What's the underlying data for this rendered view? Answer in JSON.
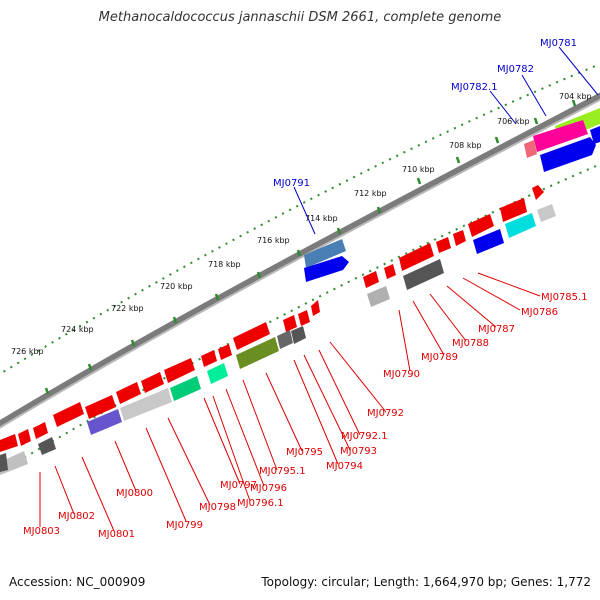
{
  "title": "Methanocaldococcus jannaschii DSM 2661, complete genome",
  "footer": {
    "accession": "Accession: NC_000909",
    "topology": "Topology: circular; Length: 1,664,970 bp; Genes: 1,772"
  },
  "colors": {
    "backbone": "#808080",
    "tick_dots": "#2e8b2e",
    "forward_label": "#0000cc",
    "reverse_label": "#dd0000"
  },
  "scale_ticks": [
    "704 kbp",
    "706 kbp",
    "708 kbp",
    "710 kbp",
    "712 kbp",
    "714 kbp",
    "716 kbp",
    "718 kbp",
    "720 kbp",
    "722 kbp",
    "724 kbp",
    "726 kbp"
  ],
  "forward_gene_labels": [
    "MJ0781",
    "MJ0782",
    "MJ0782.1",
    "MJ0791"
  ],
  "reverse_gene_labels": [
    "MJ0785.1",
    "MJ0786",
    "MJ0787",
    "MJ0788",
    "MJ0789",
    "MJ0790",
    "MJ0792",
    "MJ0792.1",
    "MJ0793",
    "MJ0794",
    "MJ0795",
    "MJ0795.1",
    "MJ0796",
    "MJ0796.1",
    "MJ0797",
    "MJ0798",
    "MJ0799",
    "MJ0800",
    "MJ0801",
    "MJ0802",
    "MJ0803"
  ]
}
